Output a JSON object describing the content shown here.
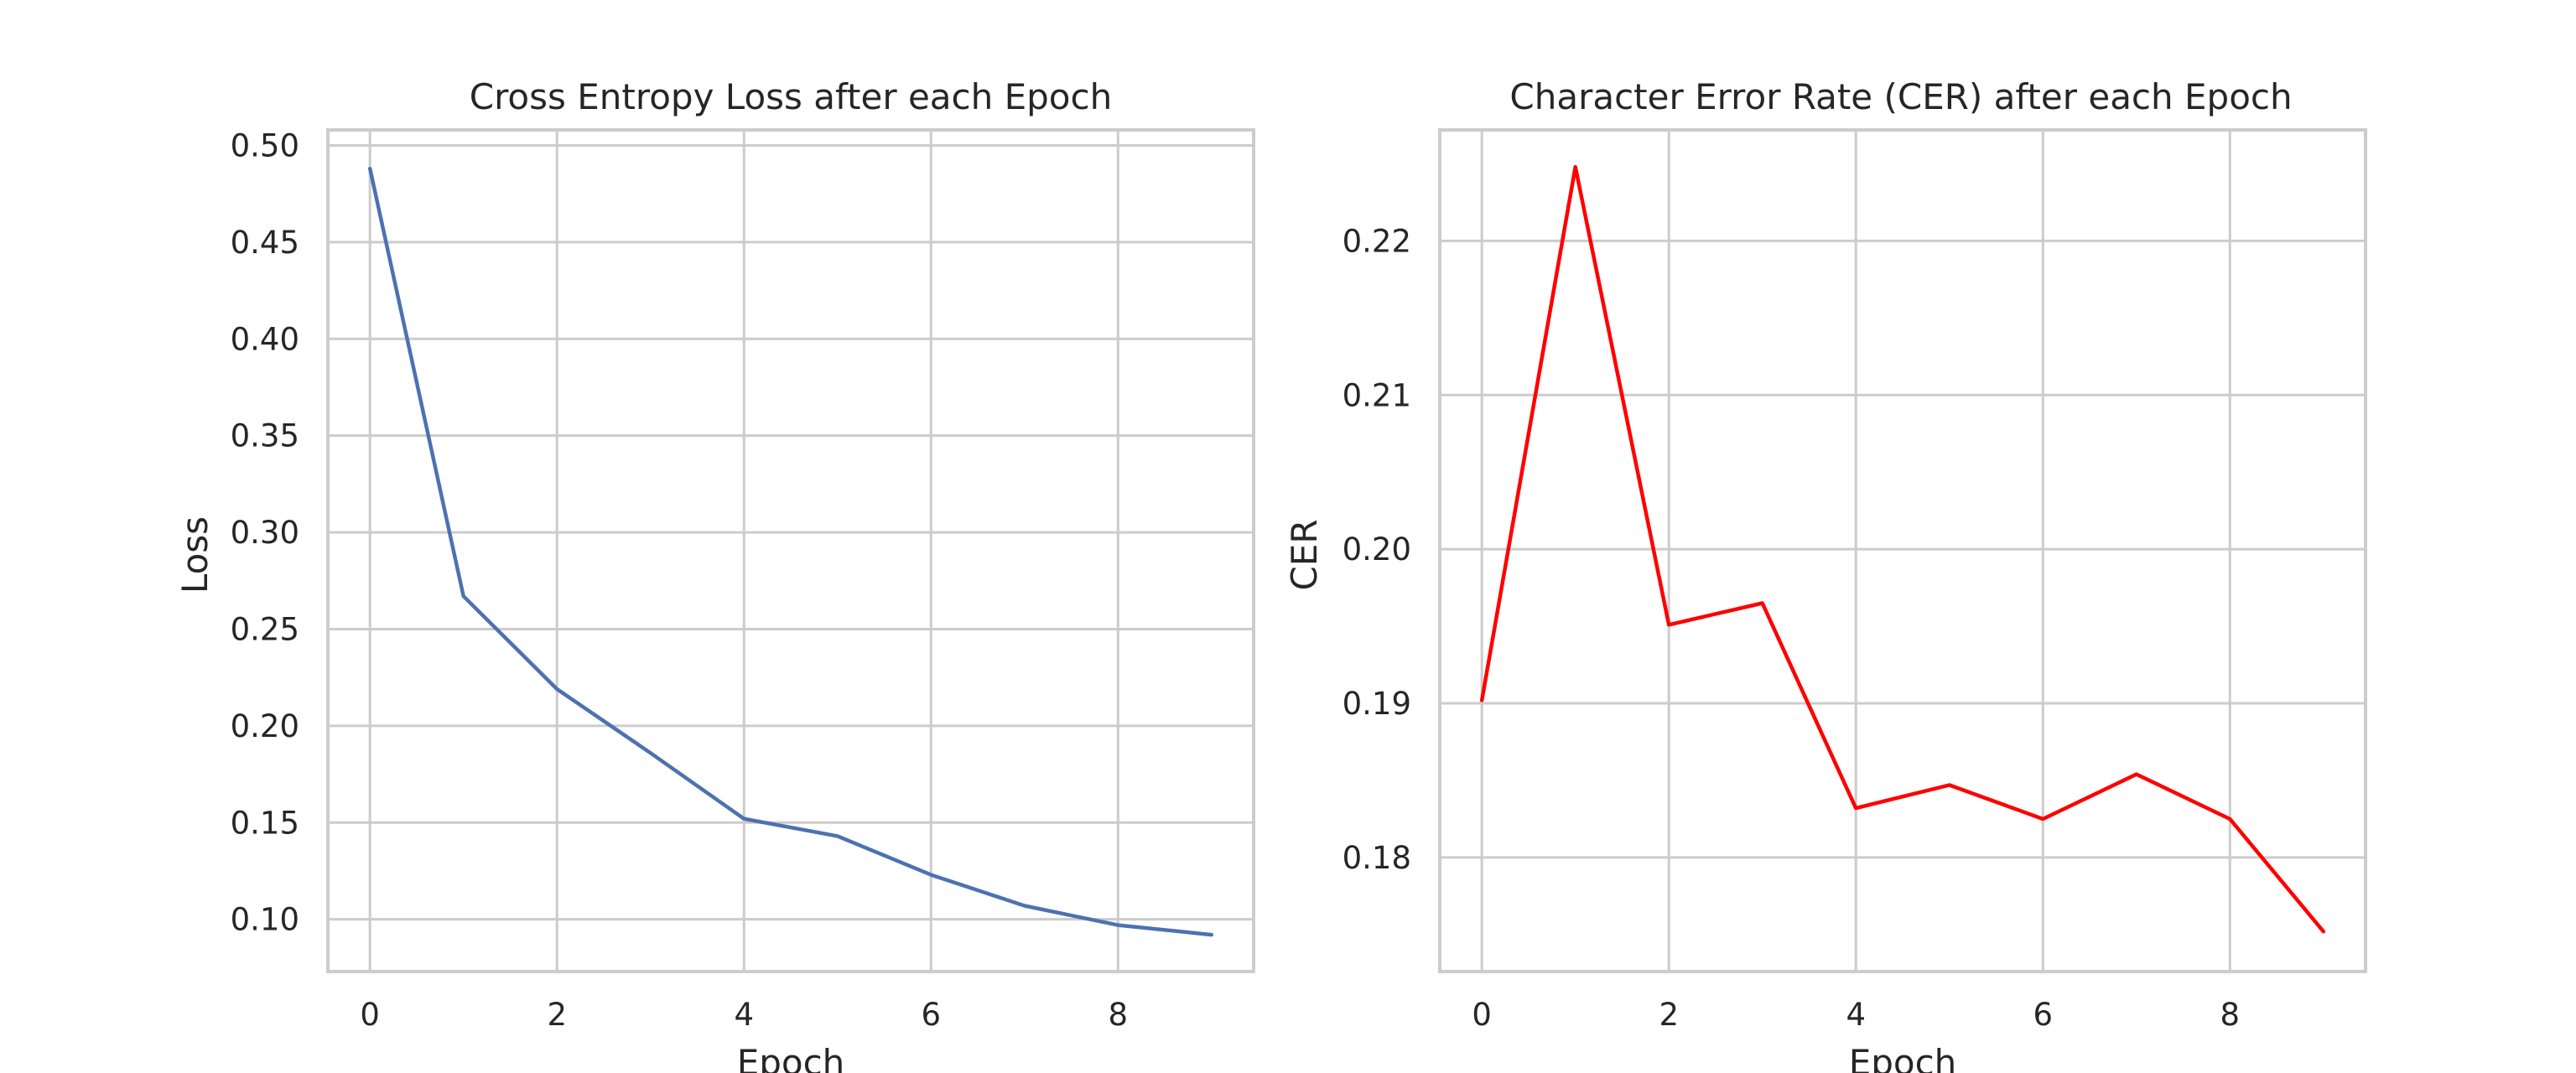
{
  "chart_data": [
    {
      "type": "line",
      "title": "Cross Entropy Loss after each Epoch",
      "xlabel": "Epoch",
      "ylabel": "Loss",
      "xlim": [
        -0.45,
        9.45
      ],
      "ylim": [
        0.073,
        0.508
      ],
      "xticks": [
        0,
        2,
        4,
        6,
        8
      ],
      "xtick_labels": [
        "0",
        "2",
        "4",
        "6",
        "8"
      ],
      "yticks": [
        0.1,
        0.15,
        0.2,
        0.25,
        0.3,
        0.35,
        0.4,
        0.45,
        0.5
      ],
      "ytick_labels": [
        "0.10",
        "0.15",
        "0.20",
        "0.25",
        "0.30",
        "0.35",
        "0.40",
        "0.45",
        "0.50"
      ],
      "grid": true,
      "x": [
        0,
        1,
        2,
        3,
        4,
        5,
        6,
        7,
        8,
        9
      ],
      "series": [
        {
          "values": [
            0.488,
            0.267,
            0.219,
            0.186,
            0.152,
            0.143,
            0.123,
            0.107,
            0.097,
            0.092
          ],
          "color": "#4c72b0"
        }
      ]
    },
    {
      "type": "line",
      "title": "Character Error Rate (CER) after each Epoch",
      "xlabel": "Epoch",
      "ylabel": "CER",
      "xlim": [
        -0.45,
        9.45
      ],
      "ylim": [
        0.1726,
        0.2272
      ],
      "xticks": [
        0,
        2,
        4,
        6,
        8
      ],
      "xtick_labels": [
        "0",
        "2",
        "4",
        "6",
        "8"
      ],
      "yticks": [
        0.18,
        0.19,
        0.2,
        0.21,
        0.22
      ],
      "ytick_labels": [
        "0.18",
        "0.19",
        "0.20",
        "0.21",
        "0.22"
      ],
      "grid": true,
      "x": [
        0,
        1,
        2,
        3,
        4,
        5,
        6,
        7,
        8,
        9
      ],
      "series": [
        {
          "values": [
            0.1902,
            0.2248,
            0.1951,
            0.1965,
            0.1832,
            0.1847,
            0.1825,
            0.1854,
            0.1825,
            0.1752
          ],
          "color": "#ff0000"
        }
      ]
    }
  ]
}
